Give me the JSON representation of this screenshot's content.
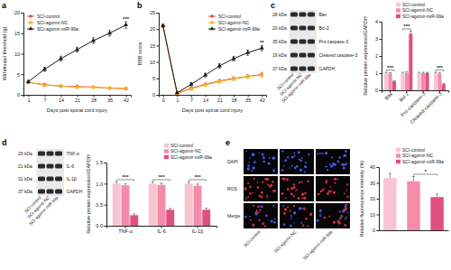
{
  "chart_data": [
    {
      "type": "line",
      "xlabel": "Days post spinal cord injury",
      "ylabel": "Withdrawal threshold (g)",
      "categories": [
        1,
        7,
        14,
        21,
        28,
        35,
        42
      ],
      "ylim": [
        0,
        20
      ],
      "yticks": [
        0,
        5,
        10,
        15,
        20
      ],
      "legend": "top-left",
      "annotation": "***",
      "series": [
        {
          "name": "SCI-control",
          "color": "#e8464b",
          "marker": "circle",
          "values": [
            3.0,
            2.5,
            2.1,
            2.0,
            1.9,
            1.6,
            1.5
          ],
          "errors": [
            0.3,
            0.3,
            0.2,
            0.2,
            0.2,
            0.2,
            0.2
          ]
        },
        {
          "name": "SCI-agomir-NC",
          "color": "#f2b51f",
          "marker": "square",
          "values": [
            3.1,
            2.3,
            2.2,
            1.8,
            1.8,
            1.7,
            1.6
          ],
          "errors": [
            0.3,
            0.3,
            0.2,
            0.2,
            0.2,
            0.2,
            0.2
          ]
        },
        {
          "name": "SCI-agomir-miR-99a",
          "color": "#1a1a1a",
          "marker": "triangle",
          "values": [
            3.2,
            6.2,
            8.8,
            11.0,
            13.2,
            15.0,
            17.0
          ],
          "errors": [
            0.3,
            0.5,
            0.6,
            0.6,
            0.7,
            0.7,
            0.8
          ]
        }
      ]
    },
    {
      "type": "line",
      "xlabel": "Days post spinal cord injury",
      "ylabel": "BBB score",
      "categories": [
        0,
        1,
        7,
        14,
        21,
        28,
        35,
        42
      ],
      "ylim": [
        0,
        25
      ],
      "yticks": [
        0,
        5,
        10,
        15,
        20,
        25
      ],
      "legend": "top-right",
      "annotation": "**",
      "series": [
        {
          "name": "SCI-control",
          "color": "#e8464b",
          "marker": "circle",
          "values": [
            21,
            0.5,
            2.0,
            3.2,
            4.2,
            5.0,
            5.6,
            6.2
          ],
          "errors": [
            0.4,
            0.2,
            0.4,
            0.4,
            0.5,
            0.5,
            0.5,
            0.6
          ]
        },
        {
          "name": "SCI-agomir-NC",
          "color": "#f2b51f",
          "marker": "square",
          "values": [
            21,
            0.4,
            1.8,
            3.0,
            4.0,
            4.8,
            5.5,
            6.0
          ],
          "errors": [
            0.4,
            0.2,
            0.4,
            0.4,
            0.5,
            0.5,
            0.5,
            0.6
          ]
        },
        {
          "name": "SCI-agomir-miR-99a",
          "color": "#1a1a1a",
          "marker": "triangle",
          "values": [
            21,
            0.6,
            3.2,
            6.0,
            8.8,
            11.0,
            12.8,
            14.2
          ],
          "errors": [
            0.4,
            0.2,
            0.5,
            0.6,
            0.7,
            0.7,
            0.8,
            0.8
          ]
        }
      ]
    },
    {
      "type": "bar",
      "ylabel": "Relative protein expression/GAPDH",
      "categories": [
        "Bax",
        "Bcl-2",
        "Pro-caspase-3",
        "Cleaved caspase-3"
      ],
      "ylim": [
        0,
        4
      ],
      "yticks": [
        0,
        1,
        2,
        3,
        4
      ],
      "legend": "top-right",
      "annotations": [
        "***",
        "***",
        null,
        "***"
      ],
      "series": [
        {
          "name": "SCI-control",
          "color": "#f9c4d2",
          "values": [
            1.0,
            1.0,
            1.0,
            1.0
          ],
          "errors": [
            0.05,
            0.05,
            0.05,
            0.05
          ]
        },
        {
          "name": "SCI-agomir-NC",
          "color": "#f28caa",
          "values": [
            0.98,
            1.02,
            1.0,
            0.97
          ],
          "errors": [
            0.05,
            0.06,
            0.05,
            0.05
          ]
        },
        {
          "name": "SCI-agomir-miR-99a",
          "color": "#e0507e",
          "values": [
            0.52,
            3.3,
            1.0,
            0.35
          ],
          "errors": [
            0.04,
            0.15,
            0.05,
            0.04
          ]
        }
      ]
    },
    {
      "type": "bar",
      "ylabel": "Relative protein expression/GAPDH",
      "categories": [
        "TNF-α",
        "IL-6",
        "IL-1β"
      ],
      "ylim": [
        0,
        1.5
      ],
      "yticks": [
        {
          "value": 0,
          "label": "0.0"
        },
        {
          "value": 0.5,
          "label": "0.5"
        },
        {
          "value": 1,
          "label": "1.0"
        },
        {
          "value": 1.5,
          "label": "1.5"
        }
      ],
      "legend": "top-right",
      "annotations": [
        "***",
        "***",
        "***"
      ],
      "series": [
        {
          "name": "SCI-control",
          "color": "#f9c4d2",
          "values": [
            1.0,
            1.0,
            1.0
          ],
          "errors": [
            0.04,
            0.04,
            0.04
          ]
        },
        {
          "name": "SCI-agomir-NC",
          "color": "#f28caa",
          "values": [
            0.96,
            0.97,
            0.95
          ],
          "errors": [
            0.04,
            0.04,
            0.04
          ]
        },
        {
          "name": "SCI-agomir-miR-99a",
          "color": "#e0507e",
          "values": [
            0.25,
            0.38,
            0.38
          ],
          "errors": [
            0.03,
            0.03,
            0.04
          ]
        }
      ]
    },
    {
      "type": "bar",
      "ylabel": "Relative fluorescence intensity (%)",
      "categories": [
        "SCI-control",
        "SCI-agomir-NC",
        "SCI-agomir-miR-99a"
      ],
      "values": [
        33,
        31,
        21
      ],
      "errors": [
        3,
        3,
        2
      ],
      "colors": [
        "#f9c4d2",
        "#f28caa",
        "#e0507e"
      ],
      "ylim": [
        0,
        40
      ],
      "yticks": [
        0,
        10,
        20,
        30,
        40
      ],
      "legend": "top-right",
      "tick_labels": "y",
      "annotations": [
        null,
        null,
        "*"
      ]
    }
  ],
  "panel_labels": [
    "a",
    "b",
    "c",
    "d",
    "e"
  ],
  "blots": [
    {
      "lanes": [
        "SCI-control",
        "SCI-agomir-NC",
        "SCI-agomir-miR-99a"
      ],
      "bands": [
        {
          "size": "28 kDa",
          "protein": "Bax"
        },
        {
          "size": "20 kDa",
          "protein": "Bcl-2"
        },
        {
          "size": "35 kDa",
          "protein": "Pro-caspase-3"
        },
        {
          "size": "19 kDa",
          "protein": "Cleaved caspase-3"
        },
        {
          "size": "37 kDa",
          "protein": "GAPDH"
        }
      ]
    },
    {
      "lanes": [
        "SCI-control",
        "SCI-agomir-NC",
        "SCI-agomir-miR-99a"
      ],
      "bands": [
        {
          "size": "26 kDa",
          "protein": "TNF-α"
        },
        {
          "size": "21 kDa",
          "protein": "IL-6"
        },
        {
          "size": "31 kDa",
          "protein": "IL-1β"
        },
        {
          "size": "37 kDa",
          "protein": "GAPDH"
        }
      ]
    }
  ],
  "fluorescence": {
    "rows": [
      "DAPI",
      "ROS",
      "Merge"
    ],
    "lanes": [
      "SCI-control",
      "SCI-agomir-NC",
      "SCI-agomir-miR-99a"
    ]
  }
}
